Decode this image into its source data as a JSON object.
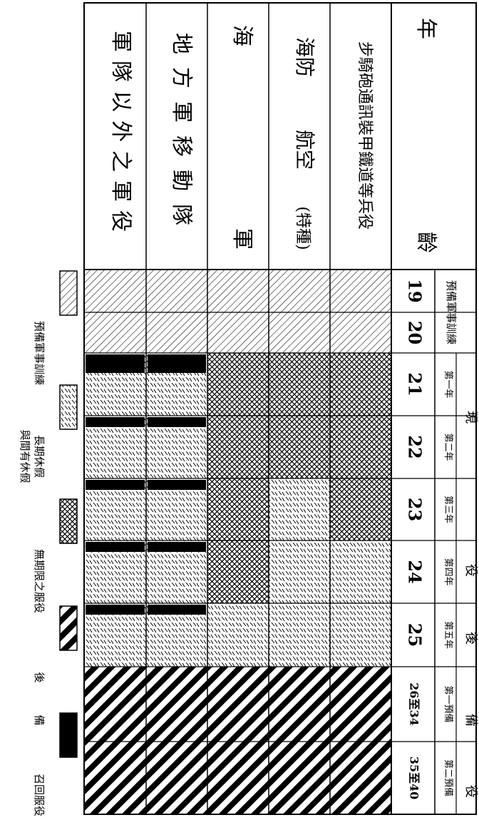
{
  "table": {
    "corner_label": "年",
    "age_header_label": "齡",
    "rows": [
      {
        "label": "步騎砲通訊裝甲鐵道等兵役"
      },
      {
        "label": "海防",
        "sub": "航空",
        "note": "(特種)"
      },
      {
        "label": "海",
        "sub": "軍"
      },
      {
        "label": "地方軍移動隊"
      },
      {
        "label": "軍隊以外之軍役"
      }
    ],
    "group_headers": {
      "pre": "預備軍事訓練",
      "active": "現",
      "active_mid": "役",
      "reserve": "後",
      "reserve_mid": "備",
      "reserve_end": "役"
    },
    "sub_headers": [
      "第一年",
      "第二年",
      "第三年",
      "第四年",
      "第五年",
      "第一預備",
      "第二預備"
    ],
    "ages": [
      "19",
      "20",
      "21",
      "22",
      "23",
      "24",
      "25",
      "26至34",
      "35至40"
    ],
    "cells": [
      [
        "pre",
        "pre",
        "active",
        "active",
        "active",
        "longleave",
        "longleave",
        "reserve",
        "reserve"
      ],
      [
        "pre",
        "pre",
        "active",
        "active",
        "longleave",
        "longleave",
        "longleave",
        "reserve",
        "reserve"
      ],
      [
        "pre",
        "pre",
        "active",
        "active",
        "active",
        "active",
        "longleave",
        "reserve",
        "reserve"
      ],
      [
        "pre",
        "pre",
        "longleave_rec",
        "longleave_rec",
        "longleave_rec",
        "longleave_rec",
        "longleave_rec",
        "reserve",
        "reserve"
      ],
      [
        "pre",
        "pre",
        "longleave_rec",
        "longleave_rec",
        "longleave_rec",
        "longleave_rec",
        "longleave_rec",
        "reserve",
        "reserve"
      ]
    ]
  },
  "legend": [
    {
      "pattern": "pre",
      "label": "預備軍事訓練"
    },
    {
      "pattern": "longleave",
      "label": "長期休假",
      "label2": "與間有休假"
    },
    {
      "pattern": "active",
      "label": "無期限之服役"
    },
    {
      "pattern": "reserve",
      "label": "後",
      "label2": "備"
    },
    {
      "pattern": "solid",
      "label": "召回服役"
    }
  ]
}
